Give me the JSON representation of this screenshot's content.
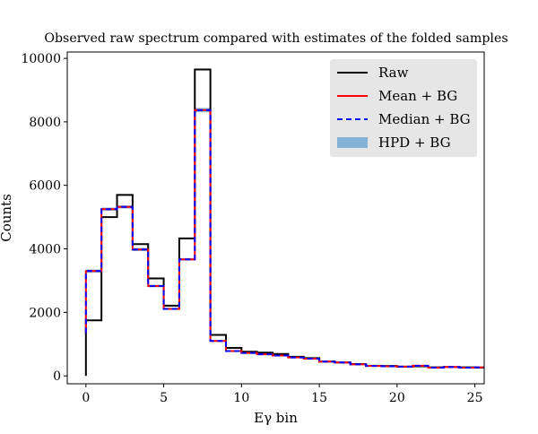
{
  "chart_data": {
    "type": "line",
    "title": "Observed raw spectrum compared with estimates of the folded samples",
    "xlabel": "Eγ bin",
    "ylabel": "Counts",
    "xlim": [
      -1.2,
      25.6
    ],
    "ylim": [
      -250,
      10200
    ],
    "xticks": [
      0,
      5,
      10,
      15,
      20,
      25
    ],
    "yticks": [
      0,
      2000,
      4000,
      6000,
      8000,
      10000
    ],
    "grid": false,
    "legend_position": "top-right",
    "x": [
      0,
      1,
      2,
      3,
      4,
      5,
      6,
      7,
      8,
      9,
      10,
      11,
      12,
      13,
      14,
      15,
      16,
      17,
      18,
      19,
      20,
      21,
      22,
      23,
      24,
      25
    ],
    "series": [
      {
        "name": "Raw",
        "color": "#000000",
        "style": "solid",
        "values": [
          1750,
          5000,
          5700,
          4150,
          3070,
          2210,
          4330,
          9650,
          1290,
          880,
          760,
          730,
          690,
          600,
          560,
          450,
          420,
          370,
          320,
          310,
          290,
          300,
          270,
          280,
          270,
          260
        ]
      },
      {
        "name": "Mean + BG",
        "color": "#ff0000",
        "style": "solid",
        "values": [
          3300,
          5250,
          5320,
          3980,
          2830,
          2110,
          3670,
          8370,
          1100,
          780,
          720,
          680,
          640,
          580,
          540,
          450,
          420,
          360,
          310,
          300,
          290,
          320,
          260,
          280,
          260,
          270
        ]
      },
      {
        "name": "Median + BG",
        "color": "#0000ff",
        "style": "dashed",
        "values": [
          3300,
          5250,
          5320,
          3980,
          2830,
          2110,
          3670,
          8370,
          1100,
          780,
          720,
          680,
          640,
          580,
          540,
          450,
          420,
          360,
          310,
          300,
          290,
          320,
          260,
          280,
          260,
          270
        ]
      },
      {
        "name": "HPD + BG",
        "color": "#86b3d5",
        "style": "band",
        "lower": [
          3250,
          5200,
          5270,
          3930,
          2790,
          2080,
          3630,
          8300,
          1080,
          765,
          710,
          670,
          630,
          570,
          530,
          440,
          410,
          350,
          300,
          290,
          280,
          310,
          250,
          270,
          250,
          260
        ],
        "upper": [
          3350,
          5300,
          5370,
          4030,
          2870,
          2140,
          3710,
          8440,
          1120,
          795,
          730,
          690,
          650,
          590,
          550,
          460,
          430,
          370,
          320,
          310,
          300,
          330,
          270,
          290,
          270,
          280
        ]
      }
    ]
  }
}
